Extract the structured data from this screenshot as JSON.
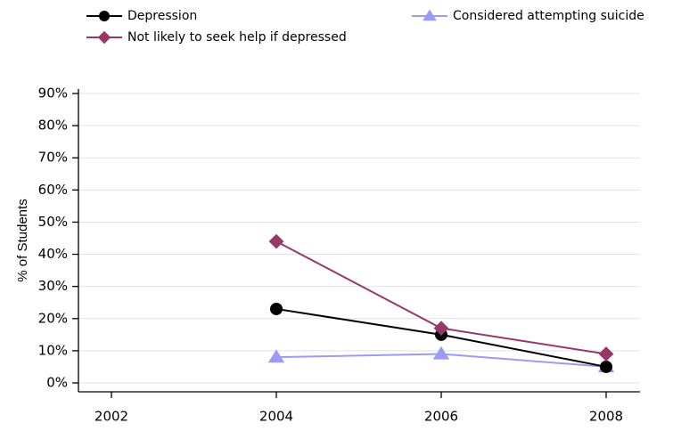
{
  "chart_data": {
    "type": "line",
    "title": "",
    "xlabel": "",
    "ylabel": "% of Students",
    "x": [
      "2002",
      "2004",
      "2006",
      "2008"
    ],
    "y_ticks": [
      "0%",
      "10%",
      "20%",
      "30%",
      "40%",
      "50%",
      "60%",
      "70%",
      "80%",
      "90%"
    ],
    "ylim": [
      0,
      90
    ],
    "grid": true,
    "legend_position": "top",
    "series": [
      {
        "name": "Depression",
        "values": [
          null,
          23,
          15,
          5
        ],
        "color": "#000000",
        "marker": "circle"
      },
      {
        "name": "Considered attempting suicide",
        "values": [
          null,
          8,
          9,
          5
        ],
        "color": "#9b9bf5",
        "marker": "triangle"
      },
      {
        "name": "Not likely to seek help if depressed",
        "values": [
          null,
          44,
          17,
          9
        ],
        "color": "#983868",
        "marker": "diamond"
      }
    ]
  }
}
